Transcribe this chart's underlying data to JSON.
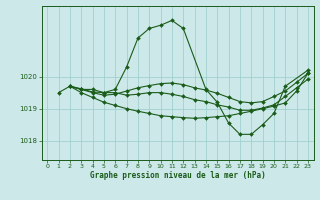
{
  "title": "Graphe pression niveau de la mer (hPa)",
  "bg_color": "#cce8e8",
  "grid_color": "#99cccc",
  "line_color": "#1a5c1a",
  "marker_color": "#1a5c1a",
  "xlim": [
    -0.5,
    23.5
  ],
  "ylim": [
    1017.4,
    1022.2
  ],
  "yticks": [
    1018,
    1019,
    1020
  ],
  "xticks": [
    0,
    1,
    2,
    3,
    4,
    5,
    6,
    7,
    8,
    9,
    10,
    11,
    12,
    13,
    14,
    15,
    16,
    17,
    18,
    19,
    20,
    21,
    22,
    23
  ],
  "xs_a": [
    1,
    2,
    3,
    4,
    5,
    6,
    7,
    8,
    9,
    10,
    11,
    12,
    14,
    15,
    16,
    17,
    18,
    19,
    20,
    21,
    23
  ],
  "ys_a": [
    1019.5,
    1019.7,
    1019.6,
    1019.6,
    1019.5,
    1019.6,
    1020.3,
    1021.2,
    1021.5,
    1021.6,
    1021.75,
    1021.5,
    1019.6,
    1019.2,
    1018.55,
    1018.2,
    1018.2,
    1018.5,
    1018.85,
    1019.7,
    1020.2
  ],
  "xs_b": [
    2,
    3,
    4,
    5,
    6,
    7,
    8,
    9,
    10,
    11,
    12,
    13,
    14,
    15,
    16,
    17,
    18,
    19,
    20,
    21,
    22,
    23
  ],
  "ys_b": [
    1019.7,
    1019.5,
    1019.35,
    1019.2,
    1019.1,
    1019.0,
    1018.92,
    1018.85,
    1018.78,
    1018.75,
    1018.72,
    1018.7,
    1018.72,
    1018.75,
    1018.78,
    1018.85,
    1018.92,
    1019.0,
    1019.08,
    1019.18,
    1019.55,
    1020.1
  ],
  "xs_c": [
    2,
    3,
    4,
    5,
    6,
    7,
    8,
    9,
    10,
    11,
    12,
    13,
    14,
    15,
    16,
    17,
    18,
    19,
    20,
    21,
    22,
    23
  ],
  "ys_c": [
    1019.7,
    1019.6,
    1019.5,
    1019.42,
    1019.45,
    1019.55,
    1019.65,
    1019.72,
    1019.78,
    1019.8,
    1019.75,
    1019.65,
    1019.58,
    1019.48,
    1019.35,
    1019.22,
    1019.18,
    1019.22,
    1019.38,
    1019.55,
    1019.82,
    1020.1
  ],
  "xs_d": [
    2,
    3,
    4,
    5,
    6,
    7,
    8,
    9,
    10,
    11,
    12,
    13,
    14,
    15,
    16,
    17,
    18,
    19,
    20,
    21,
    22,
    23
  ],
  "ys_d": [
    1019.7,
    1019.62,
    1019.52,
    1019.5,
    1019.5,
    1019.42,
    1019.45,
    1019.5,
    1019.5,
    1019.45,
    1019.38,
    1019.28,
    1019.22,
    1019.12,
    1019.05,
    1018.95,
    1018.95,
    1019.02,
    1019.12,
    1019.38,
    1019.65,
    1019.92
  ]
}
